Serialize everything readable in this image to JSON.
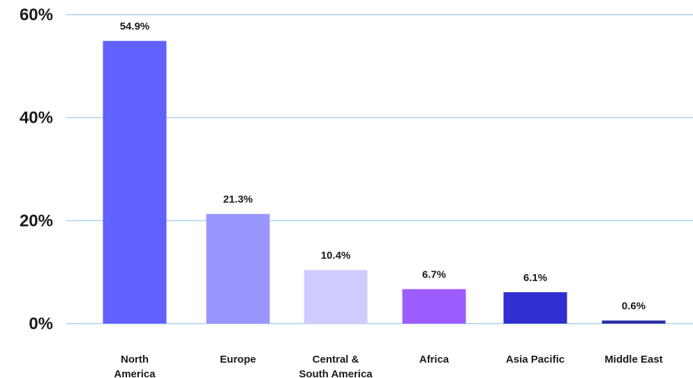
{
  "chart_data": {
    "type": "bar",
    "categories": [
      [
        "North",
        "America"
      ],
      [
        "Europe"
      ],
      [
        "Central &",
        "South America"
      ],
      [
        "Africa"
      ],
      [
        "Asia Pacific"
      ],
      [
        "Middle East"
      ]
    ],
    "values": [
      54.9,
      21.3,
      10.4,
      6.7,
      6.1,
      0.6
    ],
    "value_labels": [
      "54.9%",
      "21.3%",
      "10.4%",
      "6.7%",
      "6.1%",
      "0.6%"
    ],
    "bar_colors": [
      "#6161ff",
      "#9a96ff",
      "#cfcdff",
      "#9c5cff",
      "#3030d0",
      "#2c2ca6"
    ],
    "y_ticks": [
      {
        "value": 0,
        "label": "0%"
      },
      {
        "value": 20,
        "label": "20%"
      },
      {
        "value": 40,
        "label": "40%"
      },
      {
        "value": 60,
        "label": "60%"
      }
    ],
    "ylim": [
      0,
      60
    ],
    "grid": true,
    "grid_color": "#a9d1f0",
    "title": "",
    "xlabel": "",
    "ylabel": ""
  }
}
